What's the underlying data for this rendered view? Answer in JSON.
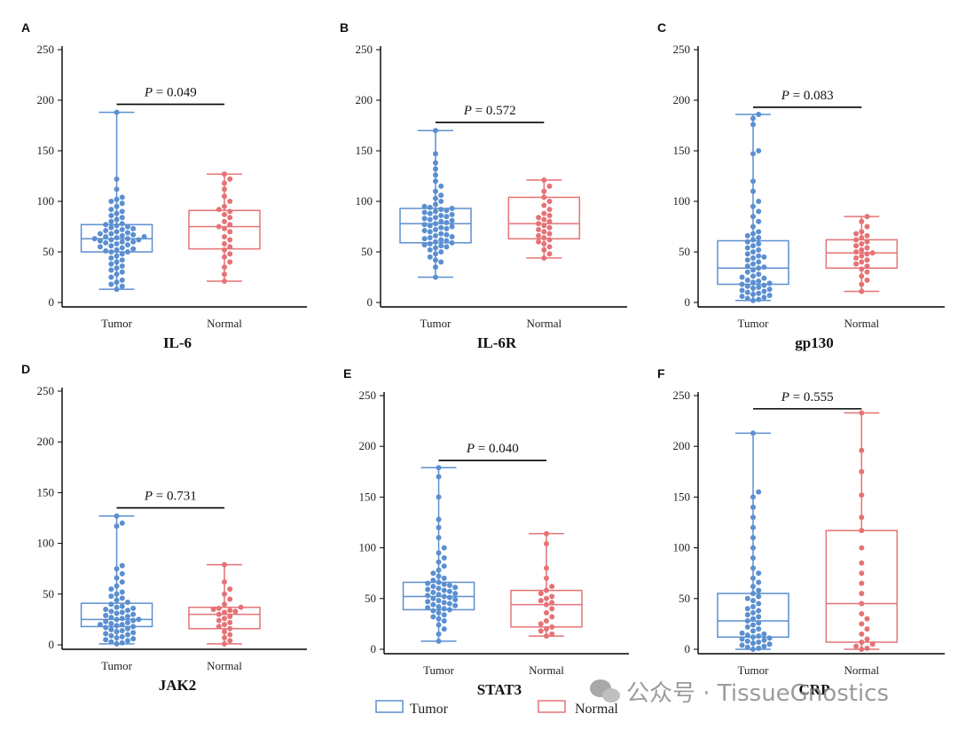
{
  "watermark": {
    "text": "公众号 · TissueGnostics",
    "icon": "wechat-icon"
  },
  "colors": {
    "tumor": "#5b8fd0",
    "normal": "#e57376"
  },
  "legend": {
    "tumor": "Tumor",
    "normal": "Normal"
  },
  "chart_data": [
    {
      "panel": "A",
      "title": "IL-6",
      "type": "box",
      "ylim": [
        0,
        250
      ],
      "yticks": [
        0,
        50,
        100,
        150,
        200,
        250
      ],
      "categories": [
        "Tumor",
        "Normal"
      ],
      "p_prefix": "P",
      "p_text": " = 0.049",
      "p_y": 196,
      "boxes": [
        {
          "name": "Tumor",
          "min": 13,
          "q1": 50,
          "median": 63,
          "q3": 77,
          "max": 188,
          "points": [
            13,
            16,
            18,
            20,
            22,
            25,
            28,
            30,
            32,
            34,
            36,
            38,
            40,
            42,
            44,
            46,
            48,
            50,
            50,
            51,
            52,
            53,
            54,
            55,
            56,
            57,
            58,
            59,
            60,
            60,
            61,
            62,
            62,
            63,
            63,
            64,
            65,
            65,
            66,
            67,
            68,
            68,
            69,
            70,
            71,
            72,
            73,
            74,
            75,
            76,
            77,
            78,
            80,
            82,
            84,
            86,
            88,
            90,
            92,
            95,
            98,
            100,
            102,
            104,
            112,
            122,
            188
          ]
        },
        {
          "name": "Normal",
          "min": 21,
          "q1": 53,
          "median": 75,
          "q3": 91,
          "max": 127,
          "points": [
            21,
            28,
            35,
            40,
            45,
            48,
            52,
            55,
            58,
            62,
            65,
            70,
            73,
            75,
            77,
            80,
            84,
            87,
            90,
            92,
            95,
            100,
            105,
            112,
            118,
            122,
            127
          ]
        }
      ]
    },
    {
      "panel": "B",
      "title": "IL-6R",
      "type": "box",
      "ylim": [
        0,
        250
      ],
      "yticks": [
        0,
        50,
        100,
        150,
        200,
        250
      ],
      "categories": [
        "Tumor",
        "Normal"
      ],
      "p_prefix": "P",
      "p_text": " = 0.572",
      "p_y": 178,
      "boxes": [
        {
          "name": "Tumor",
          "min": 25,
          "q1": 59,
          "median": 78,
          "q3": 93,
          "max": 170,
          "points": [
            25,
            35,
            40,
            42,
            45,
            48,
            50,
            52,
            54,
            55,
            56,
            57,
            58,
            59,
            60,
            61,
            62,
            63,
            64,
            65,
            66,
            67,
            68,
            70,
            71,
            72,
            73,
            74,
            75,
            76,
            77,
            78,
            79,
            80,
            81,
            82,
            83,
            84,
            85,
            86,
            87,
            88,
            89,
            90,
            91,
            92,
            93,
            94,
            95,
            97,
            100,
            103,
            106,
            110,
            115,
            120,
            126,
            132,
            138,
            147,
            170
          ]
        },
        {
          "name": "Normal",
          "min": 44,
          "q1": 63,
          "median": 78,
          "q3": 104,
          "max": 121,
          "points": [
            44,
            48,
            52,
            55,
            58,
            60,
            62,
            64,
            66,
            68,
            70,
            72,
            74,
            76,
            78,
            80,
            82,
            84,
            86,
            88,
            92,
            96,
            100,
            104,
            110,
            115,
            121
          ]
        }
      ]
    },
    {
      "panel": "C",
      "title": "gp130",
      "type": "box",
      "ylim": [
        0,
        250
      ],
      "yticks": [
        0,
        50,
        100,
        150,
        200,
        250
      ],
      "categories": [
        "Tumor",
        "Normal"
      ],
      "p_prefix": "P",
      "p_text": " = 0.083",
      "p_y": 193,
      "boxes": [
        {
          "name": "Tumor",
          "min": 2,
          "q1": 18,
          "median": 34,
          "q3": 61,
          "max": 186,
          "points": [
            2,
            3,
            4,
            5,
            6,
            7,
            8,
            9,
            10,
            11,
            12,
            13,
            14,
            15,
            16,
            17,
            18,
            19,
            20,
            21,
            22,
            24,
            25,
            26,
            28,
            30,
            32,
            34,
            35,
            36,
            38,
            40,
            42,
            44,
            45,
            46,
            48,
            50,
            52,
            54,
            56,
            58,
            60,
            62,
            64,
            66,
            68,
            70,
            75,
            80,
            85,
            90,
            95,
            100,
            110,
            120,
            147,
            150,
            176,
            182,
            186
          ]
        },
        {
          "name": "Normal",
          "min": 11,
          "q1": 34,
          "median": 49,
          "q3": 62,
          "max": 85,
          "points": [
            11,
            18,
            22,
            26,
            30,
            33,
            36,
            38,
            40,
            42,
            44,
            46,
            48,
            49,
            50,
            52,
            54,
            56,
            58,
            60,
            62,
            64,
            66,
            68,
            70,
            75,
            80,
            85
          ]
        }
      ]
    },
    {
      "panel": "D",
      "title": "JAK2",
      "type": "box",
      "ylim": [
        0,
        250
      ],
      "yticks": [
        0,
        50,
        100,
        150,
        200,
        250
      ],
      "categories": [
        "Tumor",
        "Normal"
      ],
      "p_prefix": "P",
      "p_text": " = 0.731",
      "p_y": 135,
      "boxes": [
        {
          "name": "Tumor",
          "min": 1,
          "q1": 18,
          "median": 25,
          "q3": 41,
          "max": 127,
          "points": [
            1,
            2,
            3,
            4,
            5,
            6,
            7,
            8,
            9,
            10,
            11,
            12,
            13,
            14,
            15,
            16,
            17,
            18,
            19,
            20,
            20,
            21,
            22,
            23,
            24,
            25,
            25,
            26,
            27,
            28,
            29,
            30,
            31,
            32,
            33,
            34,
            35,
            36,
            37,
            38,
            40,
            42,
            44,
            46,
            48,
            50,
            52,
            55,
            58,
            62,
            66,
            70,
            75,
            78,
            117,
            120,
            127
          ]
        },
        {
          "name": "Normal",
          "min": 1,
          "q1": 16,
          "median": 30,
          "q3": 37,
          "max": 79,
          "points": [
            1,
            4,
            7,
            10,
            13,
            16,
            18,
            20,
            22,
            24,
            26,
            28,
            30,
            32,
            33,
            34,
            35,
            36,
            37,
            40,
            45,
            50,
            55,
            62,
            79
          ]
        }
      ]
    },
    {
      "panel": "E",
      "title": "STAT3",
      "type": "box",
      "ylim": [
        0,
        250
      ],
      "yticks": [
        0,
        50,
        100,
        150,
        200,
        250
      ],
      "categories": [
        "Tumor",
        "Normal"
      ],
      "p_prefix": "P",
      "p_text": " = 0.040",
      "p_y": 186,
      "boxes": [
        {
          "name": "Tumor",
          "min": 8,
          "q1": 39,
          "median": 52,
          "q3": 66,
          "max": 179,
          "points": [
            8,
            15,
            20,
            24,
            28,
            30,
            32,
            34,
            36,
            38,
            39,
            40,
            41,
            42,
            43,
            44,
            45,
            46,
            47,
            48,
            49,
            50,
            51,
            52,
            53,
            54,
            55,
            56,
            57,
            58,
            59,
            60,
            61,
            62,
            63,
            64,
            65,
            66,
            68,
            70,
            72,
            75,
            78,
            82,
            86,
            90,
            95,
            100,
            110,
            120,
            128,
            150,
            170,
            179
          ]
        },
        {
          "name": "Normal",
          "min": 13,
          "q1": 22,
          "median": 44,
          "q3": 58,
          "max": 114,
          "points": [
            13,
            15,
            18,
            20,
            22,
            25,
            28,
            32,
            36,
            40,
            44,
            46,
            48,
            50,
            52,
            55,
            58,
            62,
            70,
            80,
            104,
            114
          ]
        }
      ]
    },
    {
      "panel": "F",
      "title": "CRP",
      "type": "box",
      "ylim": [
        0,
        250
      ],
      "yticks": [
        0,
        50,
        100,
        150,
        200,
        250
      ],
      "categories": [
        "Tumor",
        "Normal"
      ],
      "p_prefix": "P",
      "p_text": " = 0.555",
      "p_y": 237,
      "boxes": [
        {
          "name": "Tumor",
          "min": 0,
          "q1": 12,
          "median": 28,
          "q3": 55,
          "max": 213,
          "points": [
            0,
            1,
            2,
            3,
            4,
            5,
            6,
            7,
            8,
            9,
            10,
            11,
            12,
            13,
            14,
            15,
            16,
            18,
            20,
            22,
            24,
            26,
            28,
            30,
            32,
            34,
            36,
            38,
            40,
            42,
            45,
            48,
            50,
            52,
            55,
            58,
            62,
            66,
            70,
            75,
            80,
            90,
            100,
            110,
            120,
            130,
            140,
            150,
            155,
            213
          ]
        },
        {
          "name": "Normal",
          "min": 0,
          "q1": 7,
          "median": 45,
          "q3": 117,
          "max": 233,
          "points": [
            0,
            1,
            3,
            5,
            7,
            10,
            15,
            20,
            25,
            30,
            35,
            45,
            55,
            65,
            75,
            85,
            100,
            117,
            130,
            152,
            175,
            196,
            233
          ]
        }
      ]
    }
  ]
}
